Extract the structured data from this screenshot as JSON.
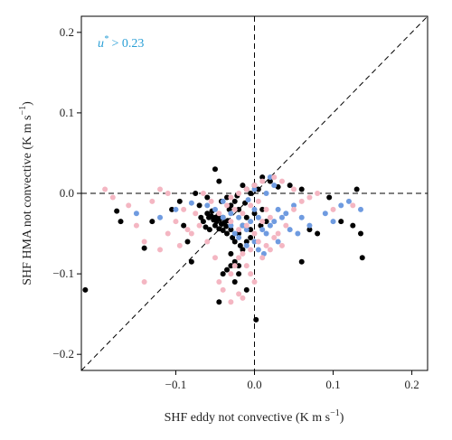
{
  "chart_data": {
    "type": "scatter",
    "xlabel": "SHF eddy not convective (K m s",
    "xlabel_sup": "−1",
    "xlabel_end": ")",
    "ylabel": "SHF HMA not convective (K m s",
    "ylabel_sup": "−1",
    "ylabel_end": ")",
    "annotation": {
      "main": "u",
      "sup": "*",
      "rest": " > 0.23",
      "color": "#2a9fd6"
    },
    "xlim": [
      -0.22,
      0.22
    ],
    "ylim": [
      -0.22,
      0.22
    ],
    "xticks": [
      {
        "value": -0.1,
        "label": "−0.1"
      },
      {
        "value": 0.0,
        "label": "0.0"
      },
      {
        "value": 0.1,
        "label": "0.1"
      },
      {
        "value": 0.2,
        "label": "0.2"
      }
    ],
    "yticks": [
      {
        "value": -0.2,
        "label": "−0.2"
      },
      {
        "value": -0.1,
        "label": "−0.1"
      },
      {
        "value": 0.0,
        "label": "0.0"
      },
      {
        "value": 0.1,
        "label": "0.1"
      },
      {
        "value": 0.2,
        "label": "0.2"
      }
    ],
    "reference_lines": [
      "x=0",
      "y=0",
      "y=x"
    ],
    "series": [
      {
        "color": "#000000",
        "points": [
          [
            -0.215,
            -0.12
          ],
          [
            -0.175,
            -0.022
          ],
          [
            -0.17,
            -0.035
          ],
          [
            -0.14,
            -0.068
          ],
          [
            -0.13,
            -0.035
          ],
          [
            -0.105,
            -0.02
          ],
          [
            -0.095,
            -0.01
          ],
          [
            -0.09,
            -0.04
          ],
          [
            -0.085,
            -0.06
          ],
          [
            -0.08,
            -0.085
          ],
          [
            -0.075,
            0.0
          ],
          [
            -0.07,
            -0.015
          ],
          [
            -0.06,
            -0.005
          ],
          [
            -0.05,
            0.03
          ],
          [
            -0.045,
            0.015
          ],
          [
            -0.035,
            -0.005
          ],
          [
            -0.03,
            -0.015
          ],
          [
            -0.025,
            -0.01
          ],
          [
            -0.02,
            -0.02
          ],
          [
            -0.015,
            0.01
          ],
          [
            -0.01,
            0.005
          ],
          [
            0.0,
            0.01
          ],
          [
            0.005,
            0.005
          ],
          [
            0.01,
            -0.02
          ],
          [
            0.015,
            -0.035
          ],
          [
            -0.06,
            -0.025
          ],
          [
            -0.058,
            -0.03
          ],
          [
            -0.055,
            -0.028
          ],
          [
            -0.052,
            -0.033
          ],
          [
            -0.05,
            -0.03
          ],
          [
            -0.048,
            -0.035
          ],
          [
            -0.046,
            -0.027
          ],
          [
            -0.044,
            -0.032
          ],
          [
            -0.042,
            -0.038
          ],
          [
            -0.04,
            -0.03
          ],
          [
            -0.038,
            -0.036
          ],
          [
            -0.036,
            -0.041
          ],
          [
            -0.034,
            -0.034
          ],
          [
            -0.05,
            -0.04
          ],
          [
            -0.045,
            -0.044
          ],
          [
            -0.04,
            -0.046
          ],
          [
            -0.035,
            -0.05
          ],
          [
            -0.03,
            -0.045
          ],
          [
            -0.028,
            -0.055
          ],
          [
            -0.025,
            -0.06
          ],
          [
            -0.02,
            -0.05
          ],
          [
            -0.018,
            -0.065
          ],
          [
            -0.015,
            -0.07
          ],
          [
            -0.01,
            -0.06
          ],
          [
            -0.005,
            -0.055
          ],
          [
            -0.065,
            -0.035
          ],
          [
            -0.068,
            -0.03
          ],
          [
            -0.062,
            -0.042
          ],
          [
            -0.057,
            -0.045
          ],
          [
            -0.054,
            -0.022
          ],
          [
            -0.03,
            -0.075
          ],
          [
            -0.025,
            -0.085
          ],
          [
            -0.02,
            -0.09
          ],
          [
            -0.03,
            -0.09
          ],
          [
            -0.035,
            -0.095
          ],
          [
            -0.02,
            -0.1
          ],
          [
            -0.025,
            -0.11
          ],
          [
            -0.04,
            -0.1
          ],
          [
            -0.045,
            -0.135
          ],
          [
            -0.01,
            -0.12
          ],
          [
            0.002,
            -0.157
          ],
          [
            0.06,
            -0.085
          ],
          [
            0.07,
            -0.045
          ],
          [
            0.08,
            -0.05
          ],
          [
            0.095,
            -0.005
          ],
          [
            0.11,
            -0.035
          ],
          [
            0.125,
            -0.04
          ],
          [
            0.135,
            -0.05
          ],
          [
            0.137,
            -0.08
          ],
          [
            0.13,
            0.005
          ],
          [
            0.06,
            0.005
          ],
          [
            0.045,
            0.01
          ],
          [
            0.03,
            0.008
          ],
          [
            0.02,
            0.015
          ],
          [
            0.01,
            0.02
          ],
          [
            -0.005,
            0.0
          ],
          [
            -0.012,
            -0.012
          ],
          [
            -0.022,
            -0.003
          ],
          [
            -0.032,
            -0.02
          ],
          [
            -0.042,
            -0.01
          ],
          [
            -0.01,
            -0.03
          ],
          [
            0.0,
            -0.025
          ],
          [
            0.008,
            -0.04
          ],
          [
            -0.005,
            -0.045
          ],
          [
            -0.015,
            -0.04
          ]
        ]
      },
      {
        "color": "#6f9be0",
        "points": [
          [
            -0.15,
            -0.025
          ],
          [
            -0.12,
            -0.03
          ],
          [
            -0.1,
            -0.02
          ],
          [
            -0.08,
            -0.012
          ],
          [
            -0.06,
            -0.015
          ],
          [
            -0.05,
            -0.02
          ],
          [
            -0.04,
            -0.01
          ],
          [
            -0.03,
            -0.025
          ],
          [
            -0.02,
            -0.03
          ],
          [
            -0.015,
            -0.04
          ],
          [
            -0.01,
            -0.045
          ],
          [
            -0.005,
            -0.035
          ],
          [
            0.0,
            -0.02
          ],
          [
            0.005,
            -0.03
          ],
          [
            0.01,
            -0.045
          ],
          [
            0.015,
            -0.05
          ],
          [
            0.02,
            -0.04
          ],
          [
            0.025,
            -0.035
          ],
          [
            0.03,
            -0.02
          ],
          [
            0.035,
            -0.03
          ],
          [
            0.04,
            -0.025
          ],
          [
            0.05,
            -0.015
          ],
          [
            0.06,
            -0.03
          ],
          [
            0.07,
            -0.04
          ],
          [
            0.09,
            -0.025
          ],
          [
            0.1,
            -0.035
          ],
          [
            0.11,
            -0.015
          ],
          [
            0.12,
            -0.01
          ],
          [
            0.135,
            -0.02
          ],
          [
            0.02,
            0.02
          ],
          [
            0.025,
            0.01
          ],
          [
            0.015,
            0.0
          ],
          [
            0.0,
            0.005
          ],
          [
            -0.008,
            -0.008
          ],
          [
            -0.025,
            -0.05
          ],
          [
            -0.02,
            -0.055
          ],
          [
            -0.01,
            -0.065
          ],
          [
            0.0,
            -0.06
          ],
          [
            0.005,
            -0.07
          ],
          [
            -0.03,
            -0.04
          ],
          [
            -0.04,
            -0.03
          ],
          [
            0.045,
            -0.045
          ],
          [
            0.055,
            -0.05
          ],
          [
            0.03,
            -0.06
          ],
          [
            0.012,
            -0.075
          ]
        ]
      },
      {
        "color": "#f4b6c2",
        "points": [
          [
            -0.19,
            0.005
          ],
          [
            -0.18,
            -0.005
          ],
          [
            -0.16,
            -0.015
          ],
          [
            -0.15,
            -0.04
          ],
          [
            -0.14,
            -0.06
          ],
          [
            -0.14,
            -0.11
          ],
          [
            -0.12,
            -0.07
          ],
          [
            -0.11,
            -0.05
          ],
          [
            -0.1,
            -0.035
          ],
          [
            -0.09,
            -0.02
          ],
          [
            -0.08,
            -0.05
          ],
          [
            -0.07,
            -0.04
          ],
          [
            -0.06,
            -0.06
          ],
          [
            -0.05,
            -0.08
          ],
          [
            -0.045,
            -0.11
          ],
          [
            -0.04,
            -0.12
          ],
          [
            -0.03,
            -0.1
          ],
          [
            -0.025,
            -0.09
          ],
          [
            -0.02,
            -0.08
          ],
          [
            -0.015,
            -0.075
          ],
          [
            -0.01,
            -0.09
          ],
          [
            -0.005,
            -0.1
          ],
          [
            0.0,
            -0.11
          ],
          [
            -0.015,
            -0.13
          ],
          [
            -0.02,
            -0.125
          ],
          [
            -0.03,
            -0.135
          ],
          [
            0.01,
            -0.08
          ],
          [
            0.02,
            -0.07
          ],
          [
            0.03,
            -0.05
          ],
          [
            0.04,
            -0.04
          ],
          [
            0.05,
            -0.02
          ],
          [
            0.06,
            -0.01
          ],
          [
            0.07,
            -0.005
          ],
          [
            0.08,
            0.0
          ],
          [
            0.05,
            0.005
          ],
          [
            0.035,
            0.015
          ],
          [
            0.025,
            0.02
          ],
          [
            0.01,
            0.015
          ],
          [
            0.0,
            0.01
          ],
          [
            -0.01,
            0.005
          ],
          [
            -0.02,
            0.0
          ],
          [
            -0.03,
            -0.005
          ],
          [
            -0.035,
            -0.015
          ],
          [
            -0.025,
            -0.02
          ],
          [
            -0.015,
            -0.025
          ],
          [
            -0.005,
            -0.015
          ],
          [
            0.005,
            -0.01
          ],
          [
            0.015,
            -0.02
          ],
          [
            0.02,
            -0.03
          ],
          [
            0.01,
            -0.035
          ],
          [
            -0.01,
            -0.04
          ],
          [
            -0.02,
            -0.045
          ],
          [
            -0.03,
            -0.035
          ],
          [
            -0.045,
            -0.025
          ],
          [
            -0.055,
            -0.01
          ],
          [
            -0.065,
            0.0
          ],
          [
            -0.075,
            -0.025
          ],
          [
            -0.085,
            -0.045
          ],
          [
            -0.095,
            -0.065
          ],
          [
            0.0,
            -0.05
          ],
          [
            0.005,
            -0.06
          ],
          [
            -0.005,
            -0.07
          ],
          [
            0.015,
            -0.065
          ],
          [
            0.025,
            -0.055
          ],
          [
            0.035,
            -0.065
          ],
          [
            -0.12,
            0.005
          ],
          [
            -0.11,
            0.0
          ],
          [
            -0.13,
            -0.01
          ],
          [
            0.1,
            -0.02
          ],
          [
            0.125,
            -0.015
          ]
        ]
      }
    ]
  }
}
